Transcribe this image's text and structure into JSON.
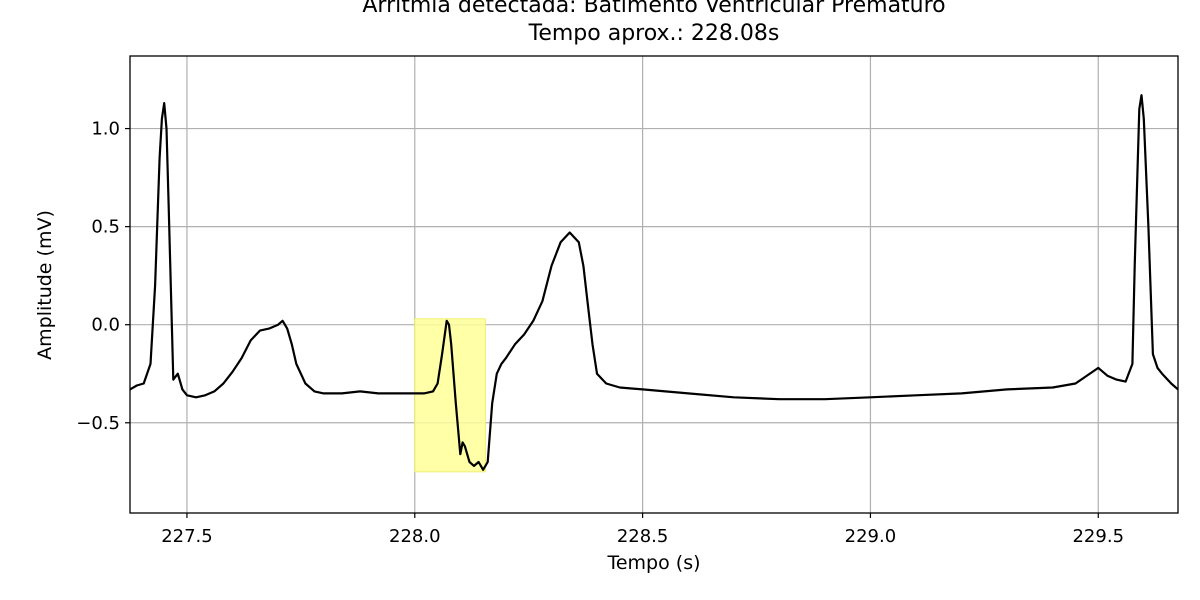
{
  "chart_data": {
    "type": "line",
    "title": "Arritmia detectada: Batimento Ventricular Prematuro",
    "subtitle": "Tempo aprox.: 228.08s",
    "xlabel": "Tempo (s)",
    "ylabel": "Amplitude (mV)",
    "xlim": [
      227.375,
      229.675
    ],
    "ylim": [
      -0.96,
      1.37
    ],
    "xticks": [
      227.5,
      228.0,
      228.5,
      229.0,
      229.5
    ],
    "xtick_labels": [
      "227.5",
      "228.0",
      "228.5",
      "229.0",
      "229.5"
    ],
    "yticks": [
      -0.5,
      0.0,
      0.5,
      1.0
    ],
    "ytick_labels": [
      "−0.5",
      "0.0",
      "0.5",
      "1.0"
    ],
    "grid": true,
    "line_color": "#000000",
    "highlight": {
      "x_range": [
        228.0,
        228.155
      ],
      "y_range": [
        -0.75,
        0.03
      ],
      "color": "#ffff99"
    },
    "series": [
      {
        "x": [
          227.375,
          227.39,
          227.405,
          227.42,
          227.43,
          227.44,
          227.445,
          227.45,
          227.455,
          227.46,
          227.47,
          227.48,
          227.49,
          227.5,
          227.52,
          227.54,
          227.56,
          227.58,
          227.6,
          227.62,
          227.64,
          227.66,
          227.68,
          227.7,
          227.71,
          227.72,
          227.73,
          227.74,
          227.76,
          227.78,
          227.8,
          227.84,
          227.88,
          227.92,
          227.96,
          228.0,
          228.02,
          228.04,
          228.05,
          228.06,
          228.07,
          228.075,
          228.08,
          228.09,
          228.1,
          228.105,
          228.11,
          228.115,
          228.12,
          228.13,
          228.14,
          228.145,
          228.15,
          228.16,
          228.17,
          228.18,
          228.19,
          228.2,
          228.22,
          228.24,
          228.26,
          228.28,
          228.3,
          228.32,
          228.34,
          228.36,
          228.37,
          228.38,
          228.39,
          228.4,
          228.42,
          228.45,
          228.5,
          228.6,
          228.7,
          228.8,
          228.9,
          229.0,
          229.1,
          229.2,
          229.3,
          229.4,
          229.45,
          229.5,
          229.52,
          229.54,
          229.56,
          229.575,
          229.58,
          229.585,
          229.59,
          229.595,
          229.6,
          229.61,
          229.62,
          229.63,
          229.64,
          229.66,
          229.675
        ],
        "y": [
          -0.33,
          -0.31,
          -0.3,
          -0.2,
          0.2,
          0.85,
          1.05,
          1.13,
          1.0,
          0.6,
          -0.28,
          -0.25,
          -0.33,
          -0.36,
          -0.37,
          -0.36,
          -0.34,
          -0.3,
          -0.24,
          -0.17,
          -0.08,
          -0.03,
          -0.02,
          0.0,
          0.02,
          -0.02,
          -0.1,
          -0.2,
          -0.3,
          -0.34,
          -0.35,
          -0.35,
          -0.34,
          -0.35,
          -0.35,
          -0.35,
          -0.35,
          -0.34,
          -0.3,
          -0.15,
          0.02,
          0.0,
          -0.1,
          -0.4,
          -0.66,
          -0.6,
          -0.62,
          -0.66,
          -0.7,
          -0.72,
          -0.7,
          -0.72,
          -0.74,
          -0.7,
          -0.4,
          -0.25,
          -0.2,
          -0.17,
          -0.1,
          -0.05,
          0.02,
          0.12,
          0.3,
          0.42,
          0.47,
          0.42,
          0.3,
          0.1,
          -0.1,
          -0.25,
          -0.3,
          -0.32,
          -0.33,
          -0.35,
          -0.37,
          -0.38,
          -0.38,
          -0.37,
          -0.36,
          -0.35,
          -0.33,
          -0.32,
          -0.3,
          -0.22,
          -0.26,
          -0.28,
          -0.29,
          -0.2,
          0.3,
          0.7,
          1.1,
          1.17,
          1.05,
          0.5,
          -0.15,
          -0.22,
          -0.25,
          -0.3,
          -0.33
        ]
      }
    ]
  }
}
